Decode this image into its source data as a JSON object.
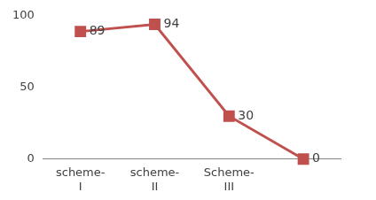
{
  "chart_data": {
    "type": "line",
    "categories": [
      "scheme-I",
      "scheme-II",
      "Scheme-III",
      null
    ],
    "values": [
      89,
      94,
      30,
      0
    ],
    "color": "#c0504d",
    "marker": "square",
    "line_style": "solid",
    "data_labels": true,
    "ylim": [
      0,
      100
    ],
    "yticks": [
      0,
      50,
      100
    ],
    "grid": false
  }
}
